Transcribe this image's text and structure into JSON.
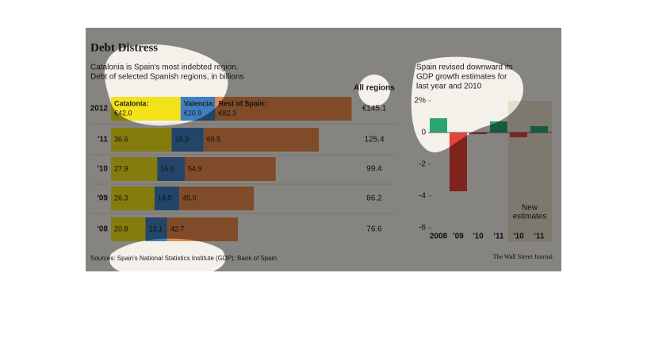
{
  "title": "Debt Distress",
  "source": "Sources: Spain's National Statistics Institute (GDP); Bank of Spain",
  "credit": "The Wall Street Journal",
  "chart_data": [
    {
      "type": "stacked-bar-horizontal",
      "subtitle": [
        "Catalonia is Spain's most indebted region.",
        "Debt of selected Spanish regions, in billions"
      ],
      "categories": [
        "2012",
        "'11",
        "'10",
        "'09",
        "'08"
      ],
      "series": [
        {
          "name": "Catalonia:",
          "color": "#f2e21a",
          "values": [
            42.0,
            36.6,
            27.9,
            26.3,
            20.8
          ],
          "value_labels": [
            "€42.0",
            "36.6",
            "27.9",
            "26.3",
            "20.8"
          ]
        },
        {
          "name": "Valencia:",
          "color": "#3f7fbf",
          "values": [
            20.9,
            19.3,
            16.6,
            14.9,
            13.1
          ],
          "value_labels": [
            "€20.9",
            "19.3",
            "16.6",
            "14.9",
            "13.1"
          ]
        },
        {
          "name": "Rest of Spain:",
          "color": "#e9894a",
          "values": [
            82.3,
            69.5,
            54.9,
            45.0,
            42.7
          ],
          "value_labels": [
            "€82.3",
            "69.5",
            "54.9",
            "45.0",
            "42.7"
          ]
        }
      ],
      "totals": {
        "name": "All regions",
        "values": [
          145.1,
          125.4,
          99.4,
          86.2,
          76.6
        ],
        "value_labels": [
          "€145.1",
          "125.4",
          "99.4",
          "86.2",
          "76.6"
        ]
      },
      "xlim": [
        0,
        150
      ]
    },
    {
      "type": "bar",
      "subtitle": [
        "Spain revised downward its",
        "GDP growth estimates for",
        "last year and 2010"
      ],
      "categories": [
        "2008",
        "'09",
        "'10",
        "'11",
        "'10",
        "'11"
      ],
      "values": [
        0.9,
        -3.7,
        -0.1,
        0.7,
        -0.3,
        0.4
      ],
      "positive_color": "#2aa574",
      "negative_color": "#e8403a",
      "ylim": [
        -6,
        2
      ],
      "yticks": [
        {
          "value": 2,
          "label": "2%"
        },
        0,
        -2,
        -4,
        -6
      ],
      "annotation": [
        "New",
        "estimates"
      ]
    }
  ]
}
